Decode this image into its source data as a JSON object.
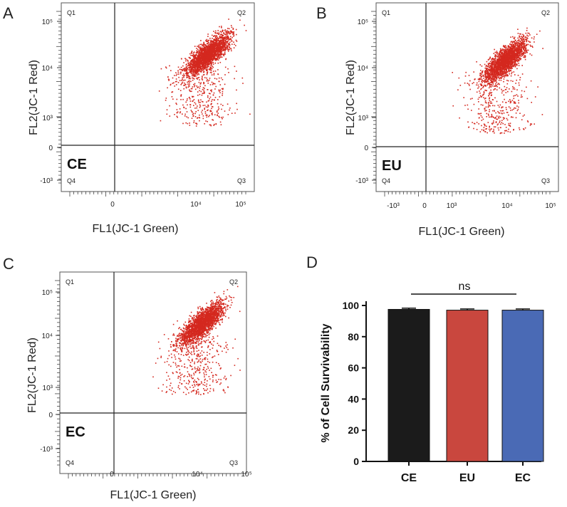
{
  "colors": {
    "dots": "#d4281f",
    "axis": "#222222",
    "bar_ce": "#1b1b1b",
    "bar_eu": "#c9473e",
    "bar_ec": "#4a6ab5"
  },
  "chart_data": [
    {
      "panel": "A",
      "type": "scatter",
      "sample_label": "CE",
      "xlabel": "FL1(JC-1 Green)",
      "ylabel": "FL2(JC-1 Red)",
      "quadrants": [
        "Q1",
        "Q2",
        "Q3",
        "Q4"
      ],
      "x_ticks": [
        "0",
        "10⁴",
        "10⁵"
      ],
      "y_ticks": [
        "10⁵",
        "10⁴",
        "10³",
        "0",
        "-10³"
      ],
      "x_scale": "biexponential",
      "y_scale": "biexponential",
      "cluster_center": {
        "x": 15000,
        "y": 10000
      }
    },
    {
      "panel": "B",
      "type": "scatter",
      "sample_label": "EU",
      "xlabel": "FL1(JC-1 Green)",
      "ylabel": "FL2(JC-1 Red)",
      "quadrants": [
        "Q1",
        "Q2",
        "Q3",
        "Q4"
      ],
      "x_ticks": [
        "-10³",
        "0",
        "10³",
        "10⁴",
        "10⁵"
      ],
      "y_ticks": [
        "10⁵",
        "10⁴",
        "10³",
        "0",
        "-10³"
      ],
      "x_scale": "biexponential",
      "y_scale": "biexponential",
      "cluster_center": {
        "x": 10000,
        "y": 8000
      }
    },
    {
      "panel": "C",
      "type": "scatter",
      "sample_label": "EC",
      "xlabel": "FL1(JC-1 Green)",
      "ylabel": "FL2(JC-1 Red)",
      "quadrants": [
        "Q1",
        "Q2",
        "Q3",
        "Q4"
      ],
      "x_ticks": [
        "0",
        "10⁴",
        "10⁵"
      ],
      "y_ticks": [
        "10⁵",
        "10⁴",
        "10³",
        "0",
        "-10³"
      ],
      "x_scale": "biexponential",
      "y_scale": "biexponential",
      "cluster_center": {
        "x": 15000,
        "y": 10000
      }
    },
    {
      "panel": "D",
      "type": "bar",
      "categories": [
        "CE",
        "EU",
        "EC"
      ],
      "values": [
        97.5,
        97,
        97
      ],
      "errors": [
        0.8,
        0.8,
        0.8
      ],
      "ylabel": "% of Cell Survivability",
      "ylim": [
        0,
        100
      ],
      "yticks": [
        0,
        20,
        40,
        60,
        80,
        100
      ],
      "annotation": "ns"
    }
  ]
}
